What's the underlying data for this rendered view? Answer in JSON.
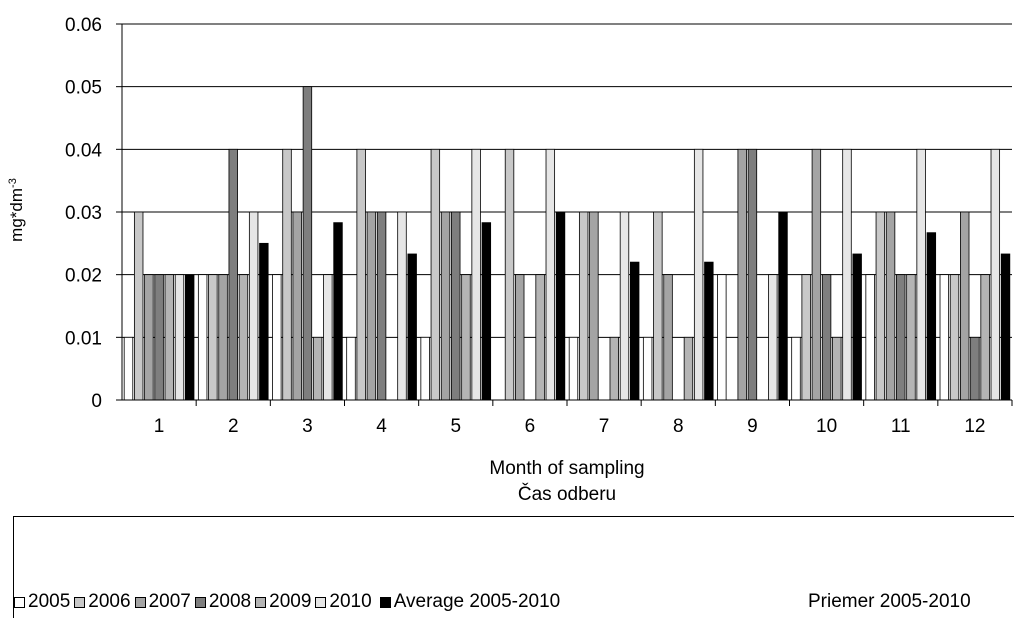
{
  "chart_data": {
    "type": "bar",
    "categories": [
      "1",
      "2",
      "3",
      "4",
      "5",
      "6",
      "7",
      "8",
      "9",
      "10",
      "11",
      "12"
    ],
    "xlabel": "Month of sampling",
    "xlabel2": "Čas odberu",
    "ylabel": "mg*dm",
    "ylabel_sup": "-3",
    "ylim": [
      0,
      0.06
    ],
    "yticks": [
      "0",
      "0.01",
      "0.02",
      "0.03",
      "0.04",
      "0.05",
      "0.06"
    ],
    "grid": true,
    "legend_placement": "bottom",
    "series": [
      {
        "name": "2005",
        "color": "#ffffff",
        "values": [
          0.01,
          0.02,
          0.02,
          0.01,
          0.01,
          0,
          0.01,
          0.01,
          0.02,
          0.01,
          0.02,
          0.02
        ]
      },
      {
        "name": "2006",
        "color": "#c8c8c8",
        "values": [
          0.03,
          0.02,
          0.04,
          0.04,
          0.04,
          0.04,
          0.03,
          0.03,
          0,
          0.02,
          0.03,
          0.02
        ]
      },
      {
        "name": "2007",
        "color": "#a4a4a4",
        "values": [
          0.02,
          0.02,
          0.03,
          0.03,
          0.03,
          0.02,
          0.03,
          0.02,
          0.04,
          0.04,
          0.03,
          0.03
        ]
      },
      {
        "name": "2008",
        "color": "#7e7e7e",
        "values": [
          0.02,
          0.04,
          0.05,
          0.03,
          0.03,
          0,
          0,
          0,
          0.04,
          0.02,
          0.02,
          0.01
        ]
      },
      {
        "name": "2009",
        "color": "#b4b4b4",
        "values": [
          0.02,
          0.02,
          0.01,
          0,
          0.02,
          0.02,
          0.01,
          0.01,
          0,
          0.01,
          0.02,
          0.02
        ]
      },
      {
        "name": "2010",
        "color": "#e6e6e6",
        "values": [
          0.02,
          0.03,
          0.02,
          0.03,
          0.04,
          0.04,
          0.03,
          0.04,
          0.02,
          0.04,
          0.04,
          0.04
        ]
      },
      {
        "name": "Average 2005-2010",
        "color": "#000000",
        "values": [
          0.02,
          0.025,
          0.0283,
          0.0233,
          0.0283,
          0.03,
          0.022,
          0.022,
          0.03,
          0.0233,
          0.0267,
          0.0233
        ]
      }
    ],
    "legend_extra": "Priemer 2005-2010"
  }
}
